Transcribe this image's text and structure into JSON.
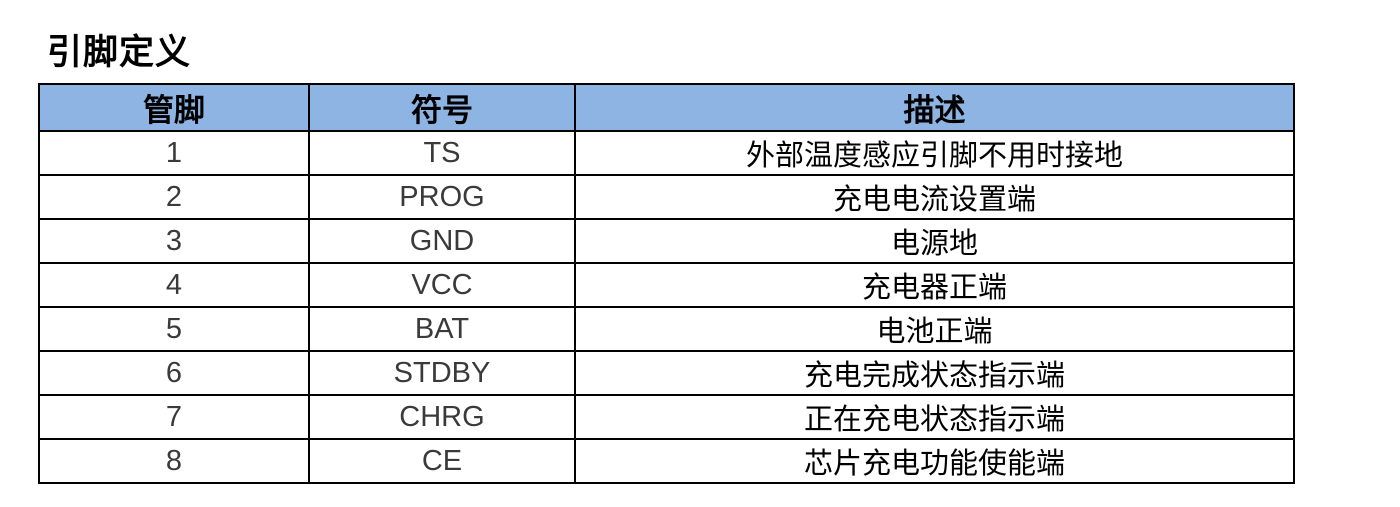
{
  "page": {
    "title": "引脚定义"
  },
  "colors": {
    "header_bg": "#8DB4E2",
    "table_border": "#000000",
    "body_text": "#3A3A3A",
    "header_text": "#000000"
  },
  "table": {
    "headers": [
      "管脚",
      "符号",
      "描述"
    ],
    "rows": [
      {
        "pin": "1",
        "symbol": "TS",
        "description": "外部温度感应引脚不用时接地"
      },
      {
        "pin": "2",
        "symbol": "PROG",
        "description": "充电电流设置端"
      },
      {
        "pin": "3",
        "symbol": "GND",
        "description": "电源地"
      },
      {
        "pin": "4",
        "symbol": "VCC",
        "description": "充电器正端"
      },
      {
        "pin": "5",
        "symbol": "BAT",
        "description": "电池正端"
      },
      {
        "pin": "6",
        "symbol": "STDBY",
        "description": "充电完成状态指示端"
      },
      {
        "pin": "7",
        "symbol": "CHRG",
        "description": "正在充电状态指示端"
      },
      {
        "pin": "8",
        "symbol": "CE",
        "description": "芯片充电功能使能端"
      }
    ]
  }
}
